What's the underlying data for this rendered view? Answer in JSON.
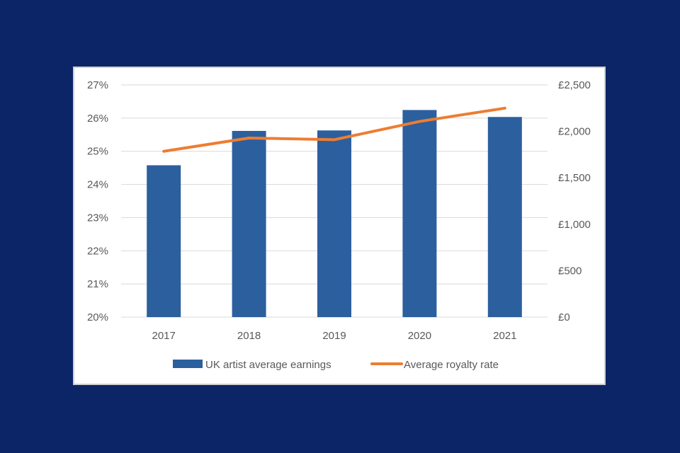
{
  "colors": {
    "background": "#0b2566",
    "bar": "#2c5f9e",
    "line": "#ed7d31",
    "grid": "#d9d9d9",
    "text": "#595959"
  },
  "chart_data": {
    "type": "bar",
    "title": "",
    "categories": [
      "2017",
      "2018",
      "2019",
      "2020",
      "2021"
    ],
    "series": [
      {
        "name": "UK artist average earnings",
        "type": "bar",
        "axis": "right",
        "values": [
          1635,
          2005,
          2010,
          2230,
          2155
        ]
      },
      {
        "name": "Average royalty rate",
        "type": "line",
        "axis": "left",
        "values": [
          25.0,
          25.4,
          25.35,
          25.9,
          26.3
        ]
      }
    ],
    "left_axis": {
      "min": 20,
      "max": 27,
      "step": 1,
      "tick_labels": [
        "20%",
        "21%",
        "22%",
        "23%",
        "24%",
        "25%",
        "26%",
        "27%"
      ]
    },
    "right_axis": {
      "min": 0,
      "max": 2500,
      "step": 500,
      "tick_labels": [
        "£0",
        "£500",
        "£1,000",
        "£1,500",
        "£2,000",
        "£2,500"
      ]
    },
    "grid": true,
    "legend_position": "bottom"
  }
}
